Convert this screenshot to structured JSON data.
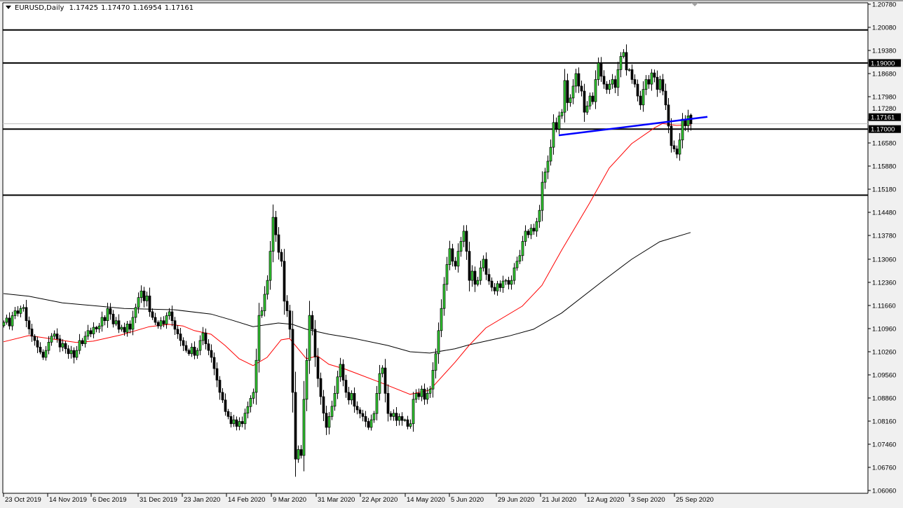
{
  "header": {
    "symbol": "EURUSD,Daily",
    "open": "1.17425",
    "high": "1.17470",
    "low": "1.16954",
    "close": "1.17161"
  },
  "colors": {
    "bull_body": "#32cd32",
    "bear_body": "#000000",
    "ma_fast": "#ff0000",
    "ma_slow": "#000000",
    "trendline": "#0000ff",
    "level_lines": "#000000",
    "bid_line": "#c0c0c0"
  },
  "chart_data": {
    "type": "candlestick",
    "symbol": "EURUSD",
    "timeframe": "Daily",
    "ylim": [
      1.0606,
      1.2078
    ],
    "grid": false,
    "y_ticks": [
      "1.20780",
      "1.20080",
      "1.19380",
      "1.18680",
      "1.17980",
      "1.17280",
      "1.16580",
      "1.15880",
      "1.15180",
      "1.14480",
      "1.13780",
      "1.13060",
      "1.12360",
      "1.11660",
      "1.10960",
      "1.10260",
      "1.09560",
      "1.08860",
      "1.08160",
      "1.07460",
      "1.06760",
      "1.06060"
    ],
    "x_ticks": [
      "23 Oct 2019",
      "14 Nov 2019",
      "6 Dec 2019",
      "31 Dec 2019",
      "23 Jan 2020",
      "14 Feb 2020",
      "9 Mar 2020",
      "31 Mar 2020",
      "22 Apr 2020",
      "14 May 2020",
      "5 Jun 2020",
      "29 Jun 2020",
      "21 Jul 2020",
      "12 Aug 2020",
      "3 Sep 2020",
      "25 Sep 2020"
    ],
    "closes": [
      1.1115,
      1.1128,
      1.1104,
      1.1135,
      1.115,
      1.1142,
      1.1157,
      1.116,
      1.112,
      1.1095,
      1.1073,
      1.106,
      1.104,
      1.1025,
      1.1009,
      1.103,
      1.1055,
      1.1073,
      1.108,
      1.1065,
      1.104,
      1.1051,
      1.1035,
      1.102,
      1.103,
      1.1009,
      1.103,
      1.106,
      1.105,
      1.1073,
      1.109,
      1.108,
      1.11,
      1.1095,
      1.1104,
      1.113,
      1.112,
      1.1157,
      1.114,
      1.111,
      1.112,
      1.1094,
      1.11,
      1.1085,
      1.111,
      1.1094,
      1.113,
      1.116,
      1.119,
      1.121,
      1.118,
      1.1195,
      1.1147,
      1.113,
      1.1115,
      1.1104,
      1.112,
      1.111,
      1.1135,
      1.1147,
      1.112,
      1.1094,
      1.108,
      1.106,
      1.1045,
      1.103,
      1.102,
      1.104,
      1.1015,
      1.103,
      1.106,
      1.1083,
      1.105,
      1.103,
      1.1009,
      1.0975,
      1.094,
      1.0903,
      1.088,
      1.0845,
      1.083,
      1.0808,
      1.082,
      1.08,
      1.0815,
      1.0808,
      1.084,
      1.086,
      1.0885,
      1.0903,
      1.1,
      1.1136,
      1.115,
      1.12,
      1.1242,
      1.133,
      1.1433,
      1.138,
      1.1327,
      1.13,
      1.1179,
      1.115,
      1.1094,
      1.0903,
      1.0701,
      1.073,
      1.0712,
      1.0882,
      1.1,
      1.1136,
      1.1094,
      1.101,
      1.0945,
      1.089,
      1.084,
      1.0797,
      1.083,
      1.0861,
      1.09,
      1.095,
      1.0988,
      1.094,
      1.0903,
      1.088,
      1.09,
      1.0861,
      1.085,
      1.0839,
      1.083,
      1.0815,
      1.0797,
      1.082,
      1.0839,
      1.09,
      1.096,
      1.0977,
      1.09,
      1.0839,
      1.083,
      1.084,
      1.0818,
      1.083,
      1.0818,
      1.082,
      1.08,
      1.0808,
      1.0882,
      1.09,
      1.089,
      1.0913,
      1.0882,
      1.09,
      1.0913,
      1.097,
      1.102,
      1.109,
      1.1157,
      1.123,
      1.129,
      1.1338,
      1.13,
      1.1285,
      1.133,
      1.136,
      1.1391,
      1.133,
      1.1242,
      1.127,
      1.123,
      1.1242,
      1.128,
      1.1306,
      1.126,
      1.124,
      1.1221,
      1.121,
      1.1232,
      1.122,
      1.124,
      1.1242,
      1.123,
      1.1242,
      1.128,
      1.13,
      1.1317,
      1.136,
      1.1391,
      1.138,
      1.14,
      1.1391,
      1.142,
      1.1454,
      1.1539,
      1.157,
      1.1603,
      1.1645,
      1.172,
      1.17,
      1.174,
      1.1751,
      1.1847,
      1.178,
      1.1794,
      1.183,
      1.1868,
      1.183,
      1.1815,
      1.1751,
      1.177,
      1.18,
      1.1783,
      1.185,
      1.19,
      1.186,
      1.1836,
      1.182,
      1.1836,
      1.185,
      1.1826,
      1.188,
      1.192,
      1.1932,
      1.1879,
      1.188,
      1.185,
      1.1836,
      1.18,
      1.1773,
      1.182,
      1.185,
      1.1836,
      1.187,
      1.1857,
      1.182,
      1.185,
      1.1815,
      1.1773,
      1.1709,
      1.165,
      1.164,
      1.1624,
      1.1667,
      1.173,
      1.171,
      1.174,
      1.1716
    ],
    "last_bar": {
      "open": 1.17425,
      "high": 1.1747,
      "low": 1.16954,
      "close": 1.17161
    },
    "ma_fast": [
      [
        0,
        1.1056
      ],
      [
        9,
        1.1075
      ],
      [
        26,
        1.1054
      ],
      [
        32,
        1.1058
      ],
      [
        42,
        1.1077
      ],
      [
        52,
        1.1102
      ],
      [
        59,
        1.1109
      ],
      [
        64,
        1.1104
      ],
      [
        68,
        1.109
      ],
      [
        74,
        1.1079
      ],
      [
        79,
        1.1045
      ],
      [
        84,
        1.1005
      ],
      [
        89,
        1.0984
      ],
      [
        94,
        1.1009
      ],
      [
        99,
        1.1062
      ],
      [
        102,
        1.1066
      ],
      [
        108,
        1.1005
      ],
      [
        112,
        1.1013
      ],
      [
        116,
        1.0988
      ],
      [
        122,
        1.0973
      ],
      [
        135,
        1.0931
      ],
      [
        145,
        1.0897
      ],
      [
        152,
        1.091
      ],
      [
        161,
        1.0994
      ],
      [
        166,
        1.1045
      ],
      [
        172,
        1.1098
      ],
      [
        185,
        1.1164
      ],
      [
        192,
        1.1227
      ],
      [
        199,
        1.1333
      ],
      [
        209,
        1.1476
      ],
      [
        216,
        1.1582
      ],
      [
        224,
        1.1656
      ],
      [
        232,
        1.1703
      ],
      [
        235,
        1.1717
      ],
      [
        240,
        1.1711
      ],
      [
        245,
        1.1713
      ]
    ],
    "ma_slow": [
      [
        0,
        1.1202
      ],
      [
        9,
        1.1194
      ],
      [
        21,
        1.1174
      ],
      [
        43,
        1.1157
      ],
      [
        61,
        1.1153
      ],
      [
        74,
        1.114
      ],
      [
        81,
        1.1123
      ],
      [
        89,
        1.1102
      ],
      [
        98,
        1.1113
      ],
      [
        103,
        1.1109
      ],
      [
        108,
        1.1094
      ],
      [
        116,
        1.1079
      ],
      [
        124,
        1.1068
      ],
      [
        137,
        1.1045
      ],
      [
        145,
        1.1026
      ],
      [
        152,
        1.1022
      ],
      [
        161,
        1.1035
      ],
      [
        166,
        1.1047
      ],
      [
        180,
        1.1073
      ],
      [
        189,
        1.1094
      ],
      [
        199,
        1.1143
      ],
      [
        214,
        1.1242
      ],
      [
        224,
        1.1306
      ],
      [
        234,
        1.1359
      ],
      [
        245,
        1.1387
      ]
    ],
    "trendline": [
      [
        198,
        1.1681
      ],
      [
        251,
        1.1737
      ]
    ],
    "horizontal_levels": [
      1.2,
      1.19,
      1.17,
      1.15
    ],
    "level_labels": [
      "1.19000",
      "1.17000"
    ],
    "bid_price": 1.17161,
    "bid_label": "1.17161"
  }
}
